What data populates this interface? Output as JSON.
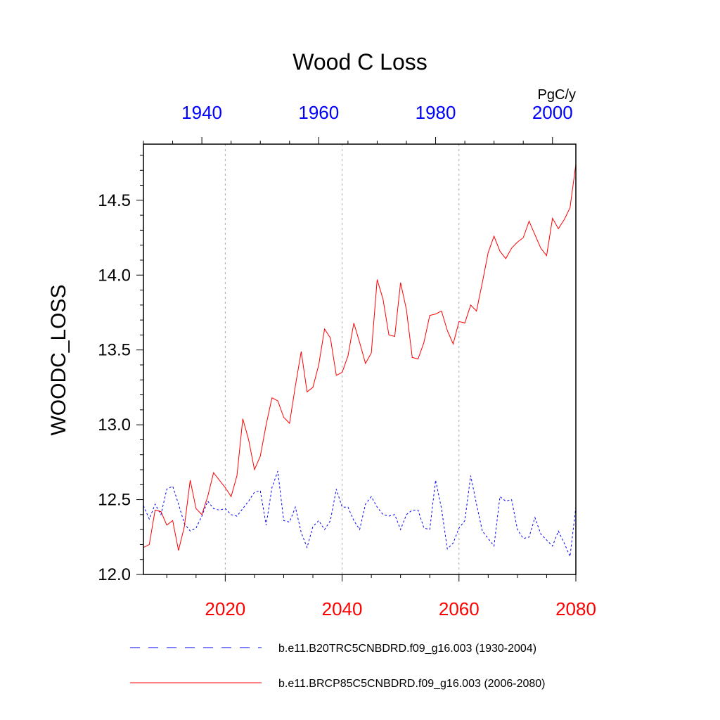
{
  "chart_data": {
    "type": "line",
    "title": "Wood C Loss",
    "ylabel": "WOODC_LOSS",
    "units": "PgC/y",
    "ylim": [
      12.0,
      14.875
    ],
    "yticks": [
      "12.0",
      "12.5",
      "13.0",
      "13.5",
      "14.0",
      "14.5"
    ],
    "bottom_axis": {
      "range": [
        2006,
        2080
      ],
      "ticks": [
        "2020",
        "2040",
        "2060",
        "2080"
      ],
      "color": "#ff0000"
    },
    "top_axis": {
      "range": [
        1930,
        2004
      ],
      "ticks": [
        "1940",
        "1960",
        "1980",
        "2000"
      ],
      "color": "#0000ff"
    },
    "grid": "vertical-dotted",
    "legend_position": "bottom",
    "series": [
      {
        "name": "b.e11.B20TRC5CNBDRD.f09_g16.003 (1930-2004)",
        "axis": "top",
        "color": "#0000ff",
        "style": "dashed",
        "x": [
          1930,
          1931,
          1932,
          1933,
          1934,
          1935,
          1936,
          1937,
          1938,
          1939,
          1940,
          1941,
          1942,
          1943,
          1944,
          1945,
          1946,
          1947,
          1948,
          1949,
          1950,
          1951,
          1952,
          1953,
          1954,
          1955,
          1956,
          1957,
          1958,
          1959,
          1960,
          1961,
          1962,
          1963,
          1964,
          1965,
          1966,
          1967,
          1968,
          1969,
          1970,
          1971,
          1972,
          1973,
          1974,
          1975,
          1976,
          1977,
          1978,
          1979,
          1980,
          1981,
          1982,
          1983,
          1984,
          1985,
          1986,
          1987,
          1988,
          1989,
          1990,
          1991,
          1992,
          1993,
          1994,
          1995,
          1996,
          1997,
          1998,
          1999,
          2000,
          2001,
          2002,
          2003,
          2004
        ],
        "values": [
          12.46,
          12.37,
          12.47,
          12.4,
          12.57,
          12.59,
          12.47,
          12.34,
          12.29,
          12.31,
          12.39,
          12.49,
          12.44,
          12.43,
          12.44,
          12.4,
          12.39,
          12.44,
          12.49,
          12.55,
          12.56,
          12.33,
          12.58,
          12.69,
          12.36,
          12.35,
          12.45,
          12.28,
          12.18,
          12.32,
          12.36,
          12.3,
          12.36,
          12.57,
          12.45,
          12.45,
          12.36,
          12.3,
          12.47,
          12.52,
          12.45,
          12.4,
          12.39,
          12.4,
          12.3,
          12.4,
          12.43,
          12.43,
          12.31,
          12.3,
          12.63,
          12.44,
          12.17,
          12.21,
          12.31,
          12.36,
          12.66,
          12.47,
          12.29,
          12.24,
          12.19,
          12.52,
          12.49,
          12.5,
          12.3,
          12.24,
          12.25,
          12.38,
          12.27,
          12.23,
          12.19,
          12.29,
          12.21,
          12.12,
          12.45
        ]
      },
      {
        "name": "b.e11.BRCP85C5CNBDRD.f09_g16.003 (2006-2080)",
        "axis": "bottom",
        "color": "#ff0000",
        "style": "solid",
        "x": [
          2006,
          2007,
          2008,
          2009,
          2010,
          2011,
          2012,
          2013,
          2014,
          2015,
          2016,
          2017,
          2018,
          2019,
          2020,
          2021,
          2022,
          2023,
          2024,
          2025,
          2026,
          2027,
          2028,
          2029,
          2030,
          2031,
          2032,
          2033,
          2034,
          2035,
          2036,
          2037,
          2038,
          2039,
          2040,
          2041,
          2042,
          2043,
          2044,
          2045,
          2046,
          2047,
          2048,
          2049,
          2050,
          2051,
          2052,
          2053,
          2054,
          2055,
          2056,
          2057,
          2058,
          2059,
          2060,
          2061,
          2062,
          2063,
          2064,
          2065,
          2066,
          2067,
          2068,
          2069,
          2070,
          2071,
          2072,
          2073,
          2074,
          2075,
          2076,
          2077,
          2078,
          2079,
          2080
        ],
        "values": [
          12.18,
          12.2,
          12.43,
          12.42,
          12.33,
          12.36,
          12.16,
          12.32,
          12.63,
          12.44,
          12.4,
          12.52,
          12.68,
          12.63,
          12.58,
          12.52,
          12.66,
          13.04,
          12.9,
          12.7,
          12.79,
          13.0,
          13.18,
          13.16,
          13.05,
          13.01,
          13.26,
          13.49,
          13.22,
          13.25,
          13.4,
          13.64,
          13.58,
          13.33,
          13.35,
          13.46,
          13.68,
          13.55,
          13.41,
          13.48,
          13.97,
          13.84,
          13.6,
          13.59,
          13.95,
          13.77,
          13.45,
          13.44,
          13.55,
          13.73,
          13.74,
          13.76,
          13.63,
          13.54,
          13.69,
          13.68,
          13.8,
          13.76,
          13.95,
          14.15,
          14.26,
          14.16,
          14.11,
          14.18,
          14.22,
          14.25,
          14.36,
          14.27,
          14.18,
          14.13,
          14.38,
          14.31,
          14.37,
          14.45,
          14.74
        ]
      }
    ]
  }
}
